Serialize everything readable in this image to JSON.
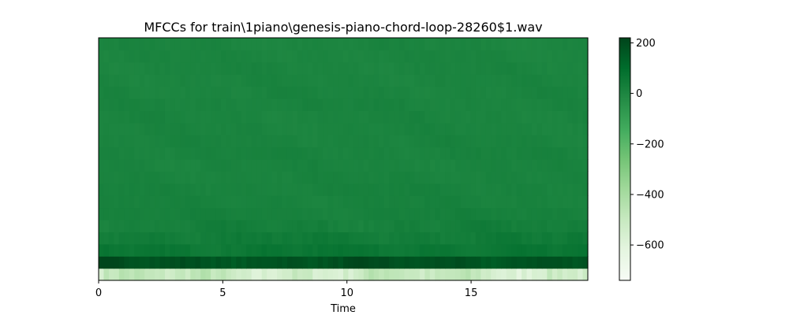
{
  "chart_data": {
    "type": "heatmap",
    "title": "MFCCs for train\\1piano\\genesis-piano-chord-loop-28260$1.wav",
    "xlabel": "Time",
    "ylabel": "",
    "xlim": [
      0,
      19.7
    ],
    "xticks": [
      0,
      5,
      10,
      15
    ],
    "xtick_labels": [
      "0",
      "5",
      "10",
      "15"
    ],
    "n_coefficients": 20,
    "colormap": "Greens",
    "colorbar": {
      "range": [
        -740,
        220
      ],
      "ticks": [
        200,
        0,
        -200,
        -400,
        -600
      ],
      "tick_labels": [
        "200",
        "0",
        "−200",
        "−400",
        "−600"
      ]
    },
    "row_values_bottom_to_top": [
      -520,
      180,
      60,
      40,
      25,
      20,
      15,
      15,
      12,
      10,
      12,
      10,
      8,
      8,
      10,
      8,
      6,
      6,
      6,
      5
    ],
    "colors": {
      "cmap_stops": [
        "#f7fcf5",
        "#e5f5e0",
        "#c7e9c0",
        "#a1d99b",
        "#74c476",
        "#41ab5d",
        "#238b45",
        "#006d2c",
        "#00441b"
      ]
    }
  }
}
